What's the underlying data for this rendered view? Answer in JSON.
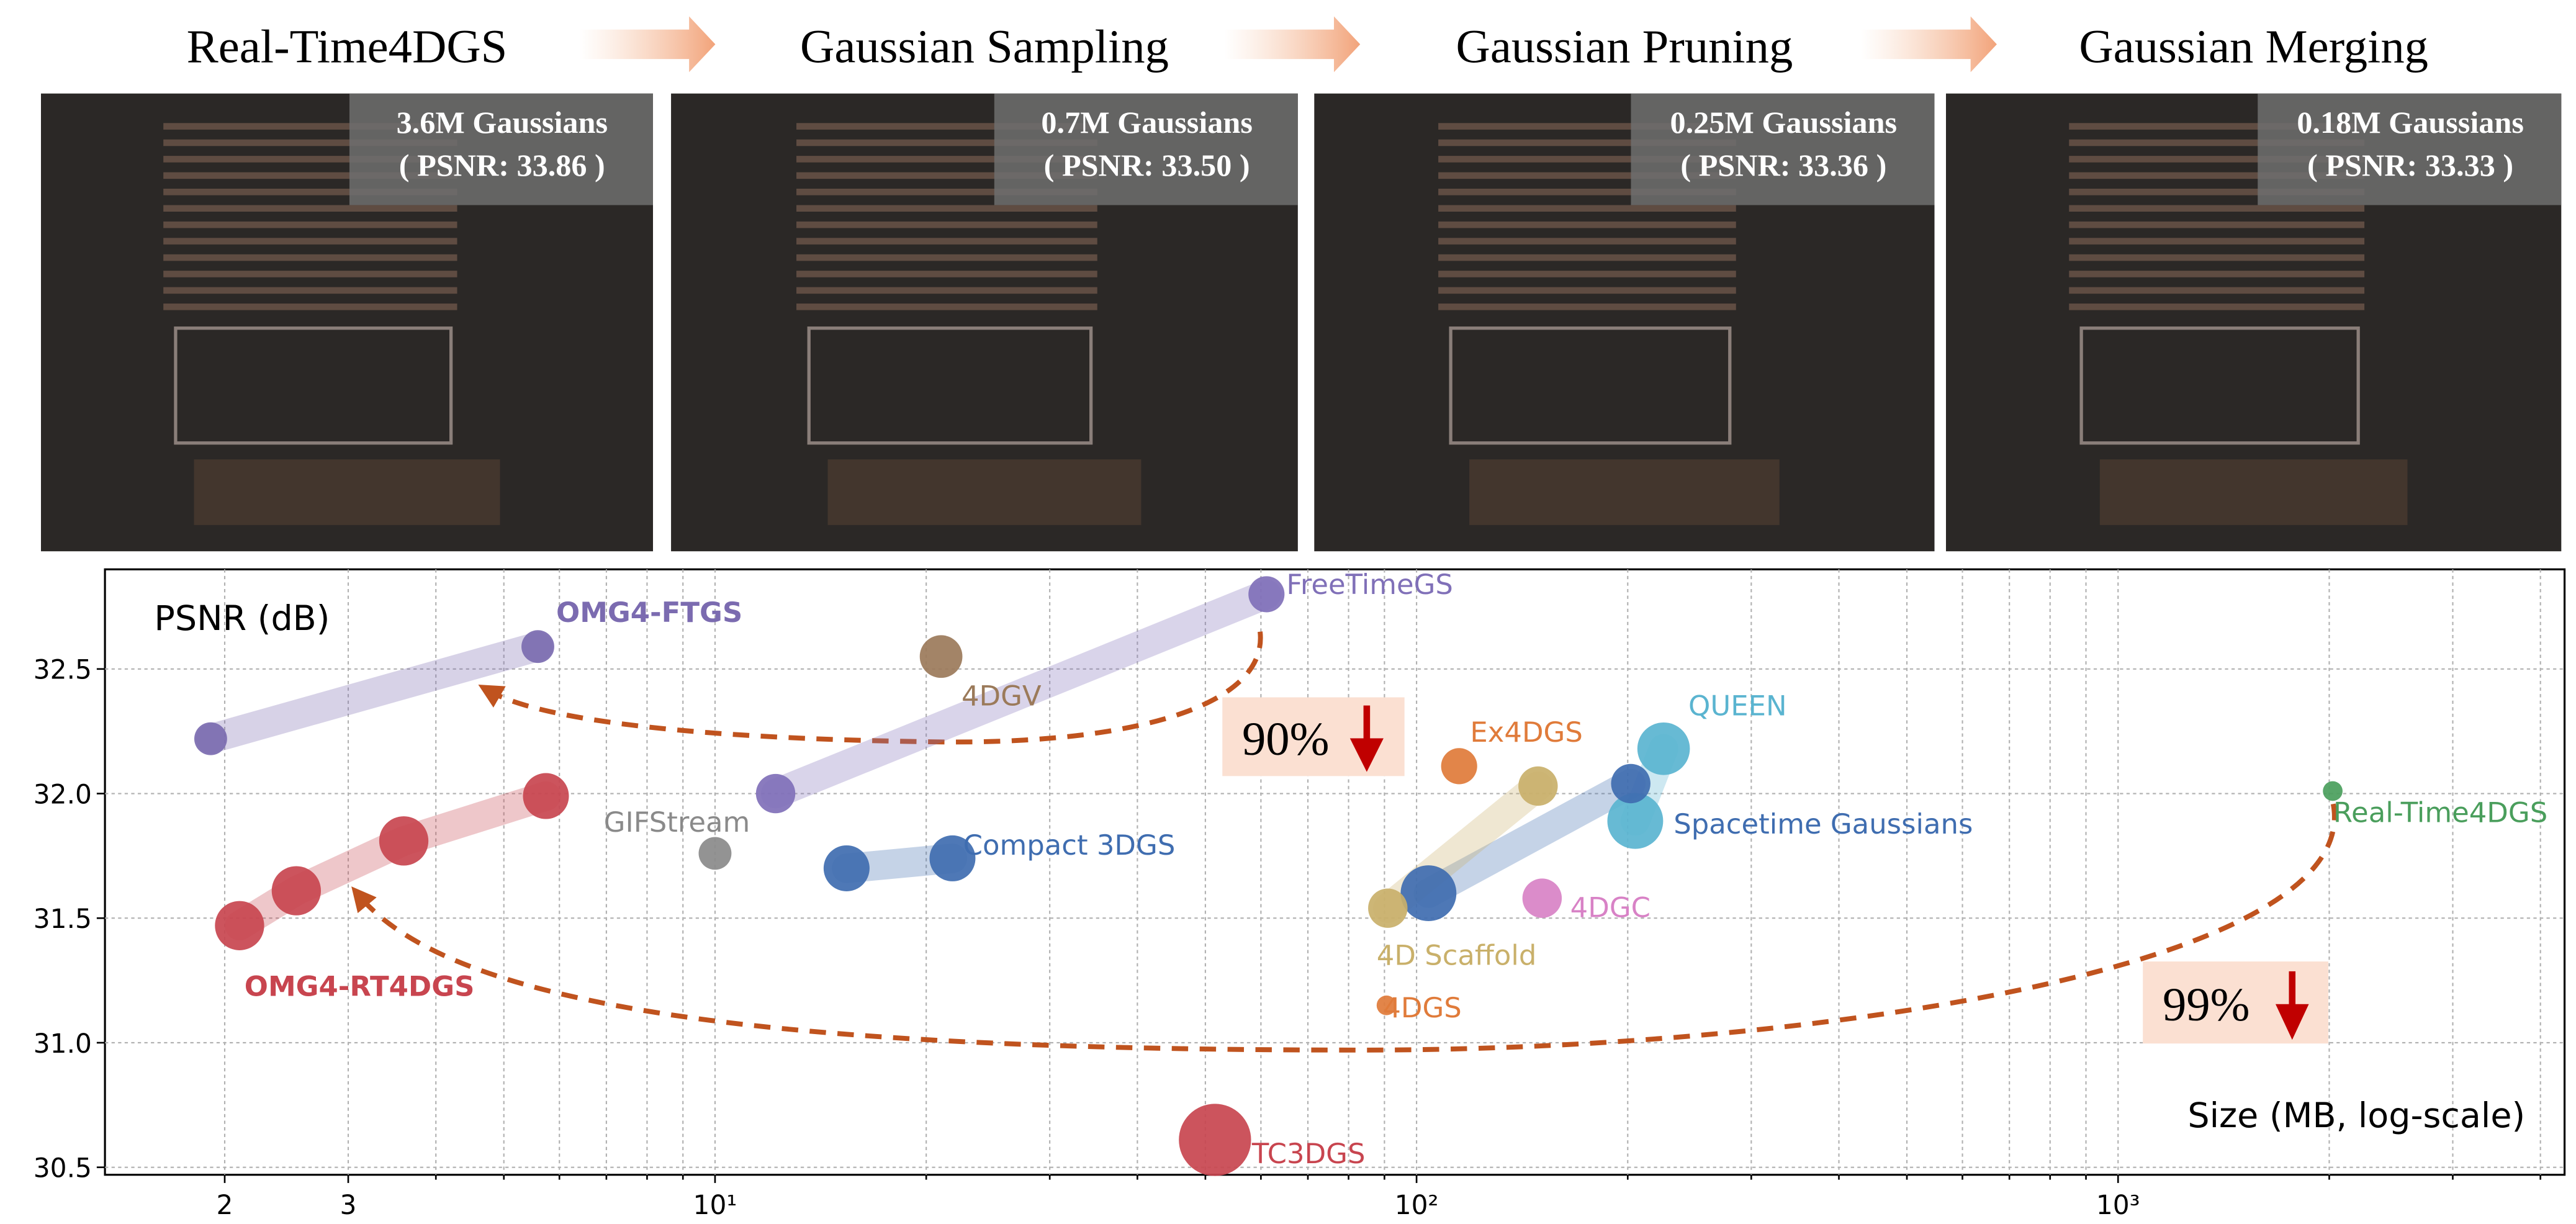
{
  "pipeline": {
    "stages": [
      {
        "title": "Real-Time4DGS",
        "count": "3.6M Gaussians",
        "psnr": "( PSNR: 33.86 )"
      },
      {
        "title": "Gaussian Sampling",
        "count": "0.7M Gaussians",
        "psnr": "( PSNR: 33.50 )"
      },
      {
        "title": "Gaussian Pruning",
        "count": "0.25M Gaussians",
        "psnr": "( PSNR: 33.36 )"
      },
      {
        "title": "Gaussian Merging",
        "count": "0.18M Gaussians",
        "psnr": "( PSNR: 33.33 )"
      }
    ]
  },
  "chart_data": {
    "type": "scatter",
    "ylabel": "PSNR (dB)",
    "xlabel": "Size (MB, log-scale)",
    "xscale": "log",
    "grid": true,
    "xlim": [
      1.35,
      4330
    ],
    "ylim": [
      30.47,
      32.9
    ],
    "xticks": [
      2,
      3,
      {
        "value": 10,
        "label": "10¹"
      },
      {
        "value": 100,
        "label": "10²"
      },
      {
        "value": 1000,
        "label": "10³"
      }
    ],
    "x_minor_ticks": [
      4,
      5,
      6,
      7,
      8,
      9,
      20,
      30,
      40,
      50,
      60,
      70,
      80,
      90,
      200,
      300,
      400,
      500,
      600,
      700,
      800,
      900,
      2000,
      3000,
      4000
    ],
    "yticks": [
      30.5,
      {
        "value": 31,
        "label": "31.0"
      },
      31.5,
      {
        "value": 32,
        "label": "32.0"
      },
      32.5
    ],
    "annotations": [
      {
        "text": "90%"
      },
      {
        "text": "99%"
      }
    ],
    "series": [
      {
        "name": "OMG4-FTGS",
        "color": "#7b6bb0",
        "bold": true,
        "x": [
          1.91,
          5.59
        ],
        "y": [
          32.22,
          32.59
        ],
        "marker_sizes": [
          10,
          10
        ]
      },
      {
        "name": "FreeTimeGS",
        "color": "#8070b8",
        "x": [
          12.2,
          61.1
        ],
        "y": [
          32.0,
          32.8
        ],
        "marker_sizes": [
          12,
          11
        ]
      },
      {
        "name": "4DGV",
        "color": "#9b7a5a",
        "x": [
          21.0
        ],
        "y": [
          32.55
        ],
        "marker_sizes": [
          13
        ]
      },
      {
        "name": "GIFStream",
        "color": "#8a8a8a",
        "x": [
          10.0
        ],
        "y": [
          31.76
        ],
        "marker_sizes": [
          10
        ]
      },
      {
        "name": "Compact 3DGS",
        "color": "#3f6db0",
        "x": [
          15.4,
          21.8
        ],
        "y": [
          31.7,
          31.74
        ],
        "marker_sizes": [
          14,
          14
        ]
      },
      {
        "name": "OMG4-RT4DGS",
        "color": "#c8454f",
        "bold": true,
        "x": [
          2.1,
          2.53,
          3.6,
          5.74
        ],
        "y": [
          31.47,
          31.61,
          31.81,
          31.99
        ],
        "marker_sizes": [
          15,
          15,
          15,
          14
        ]
      },
      {
        "name": "Real-Time4DGS",
        "color": "#4a9e5c",
        "x": [
          2023
        ],
        "y": [
          32.01
        ],
        "marker_sizes": [
          6
        ]
      },
      {
        "name": "Ex4DGS",
        "color": "#e07b3a",
        "x": [
          115
        ],
        "y": [
          32.11
        ],
        "marker_sizes": [
          11
        ]
      },
      {
        "name": "QUEEN",
        "color": "#5ab4d0",
        "x": [
          205,
          225
        ],
        "y": [
          31.89,
          32.18
        ],
        "marker_sizes": [
          17,
          16
        ]
      },
      {
        "name": "Spacetime Gaussians",
        "color": "#3f6db0",
        "x": [
          104,
          202
        ],
        "y": [
          31.6,
          32.04
        ],
        "marker_sizes": [
          17,
          12
        ]
      },
      {
        "name": "4D Scaffold",
        "color": "#c9b06a",
        "x": [
          91,
          149
        ],
        "y": [
          31.54,
          32.03
        ],
        "marker_sizes": [
          12,
          12
        ]
      },
      {
        "name": "4DGC",
        "color": "#d882c6",
        "x": [
          151
        ],
        "y": [
          31.58
        ],
        "marker_sizes": [
          12
        ]
      },
      {
        "name": "4DGS",
        "color": "#e07b3a",
        "x": [
          90.6
        ],
        "y": [
          31.15
        ],
        "marker_sizes": [
          6
        ]
      },
      {
        "name": "TC3DGS",
        "color": "#c8454f",
        "x": [
          51.6
        ],
        "y": [
          30.61
        ],
        "marker_sizes": [
          22
        ]
      }
    ]
  }
}
